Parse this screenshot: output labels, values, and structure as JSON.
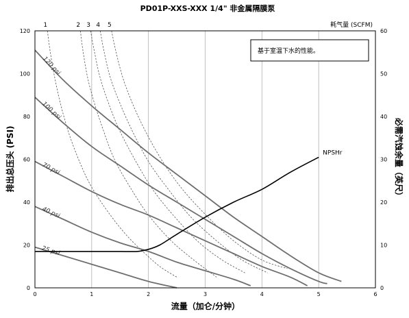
{
  "chart_data": {
    "type": "line",
    "title": "PD01P-XXS-XXX 1/4\" 非金属隔膜泵",
    "xlabel": "流量（加仑/分钟）",
    "ylabel": "排出总压头 (PSI)",
    "y2label": "必需汽蚀余量（英尺）",
    "top_axis_label": "耗气量 (SCFM)",
    "note": "基于室温下水的性能。",
    "xlim": [
      0,
      6
    ],
    "ylim": [
      0,
      120
    ],
    "y2lim": [
      0,
      60
    ],
    "x_ticks": [
      0,
      1,
      2,
      3,
      4,
      5,
      6
    ],
    "y_ticks": [
      0,
      20,
      40,
      60,
      80,
      100,
      120
    ],
    "y2_ticks": [
      0,
      10,
      20,
      30,
      40,
      50,
      60
    ],
    "grid": "vertical",
    "pressure_curves": [
      {
        "name": "120 psi",
        "x": [
          0,
          0.5,
          1.0,
          1.5,
          2.0,
          2.5,
          3.0,
          3.5,
          4.0,
          4.5,
          5.0,
          5.4
        ],
        "y": [
          111,
          97,
          85,
          74,
          63,
          53,
          43,
          33,
          24,
          15,
          7,
          3
        ]
      },
      {
        "name": "100 psi",
        "x": [
          0,
          0.5,
          1.0,
          1.5,
          2.0,
          2.5,
          3.0,
          3.5,
          4.0,
          4.5,
          5.0,
          5.15
        ],
        "y": [
          89,
          77,
          66,
          57,
          48,
          40,
          32,
          24,
          16,
          9,
          3,
          2
        ]
      },
      {
        "name": "70 psi",
        "x": [
          0,
          0.5,
          1.0,
          1.5,
          2.0,
          2.5,
          3.0,
          3.5,
          4.0,
          4.5,
          4.8
        ],
        "y": [
          59,
          52,
          45,
          39,
          34,
          28,
          22,
          16,
          10,
          5,
          1
        ]
      },
      {
        "name": "40 psi",
        "x": [
          0,
          0.5,
          1.0,
          1.5,
          2.0,
          2.5,
          3.0,
          3.5,
          3.8
        ],
        "y": [
          38,
          32,
          26,
          21,
          17,
          12,
          8,
          4,
          1
        ]
      },
      {
        "name": "25 psi",
        "x": [
          0,
          0.5,
          1.0,
          1.5,
          2.0,
          2.5
        ],
        "y": [
          19,
          15,
          11,
          7,
          3,
          0
        ]
      }
    ],
    "air_consumption_curves": [
      {
        "name": "1",
        "x": [
          0.22,
          0.27,
          0.35,
          0.45,
          0.6,
          0.8,
          1.0,
          1.3,
          1.6,
          1.9,
          2.2,
          2.5
        ],
        "y": [
          120,
          110,
          98,
          86,
          72,
          58,
          47,
          35,
          25,
          17,
          10,
          5
        ]
      },
      {
        "name": "2",
        "x": [
          0.8,
          0.85,
          0.93,
          1.05,
          1.2,
          1.4,
          1.7,
          2.0,
          2.4,
          2.8,
          3.2
        ],
        "y": [
          120,
          110,
          98,
          86,
          74,
          60,
          46,
          34,
          22,
          13,
          5
        ]
      },
      {
        "name": "3",
        "x": [
          0.98,
          1.05,
          1.15,
          1.3,
          1.5,
          1.8,
          2.1,
          2.5,
          2.9,
          3.3,
          3.7
        ],
        "y": [
          120,
          110,
          98,
          86,
          73,
          58,
          45,
          32,
          21,
          13,
          7
        ]
      },
      {
        "name": "4",
        "x": [
          1.15,
          1.22,
          1.33,
          1.5,
          1.72,
          2.0,
          2.35,
          2.75,
          3.2,
          3.65,
          4.1
        ],
        "y": [
          120,
          110,
          98,
          86,
          73,
          59,
          46,
          33,
          22,
          13,
          7
        ]
      },
      {
        "name": "5",
        "x": [
          1.35,
          1.43,
          1.55,
          1.72,
          1.95,
          2.25,
          2.6,
          3.05,
          3.5,
          4.0,
          4.45
        ],
        "y": [
          120,
          110,
          98,
          86,
          73,
          59,
          46,
          33,
          22,
          13,
          9
        ]
      }
    ],
    "npshr_curve": {
      "name": "NPSHr",
      "axis": "right",
      "x": [
        0,
        0.5,
        1.0,
        1.5,
        1.8,
        2.0,
        2.2,
        2.5,
        3.0,
        3.5,
        4.0,
        4.5,
        5.0
      ],
      "y": [
        8.5,
        8.5,
        8.5,
        8.5,
        8.5,
        9,
        10,
        12.5,
        16.5,
        20,
        23,
        27,
        30.5
      ]
    },
    "colors": {
      "pressure": "#6e6e6e",
      "air": "#555555",
      "npshr": "#000000",
      "grid": "#b0b0b0"
    }
  }
}
